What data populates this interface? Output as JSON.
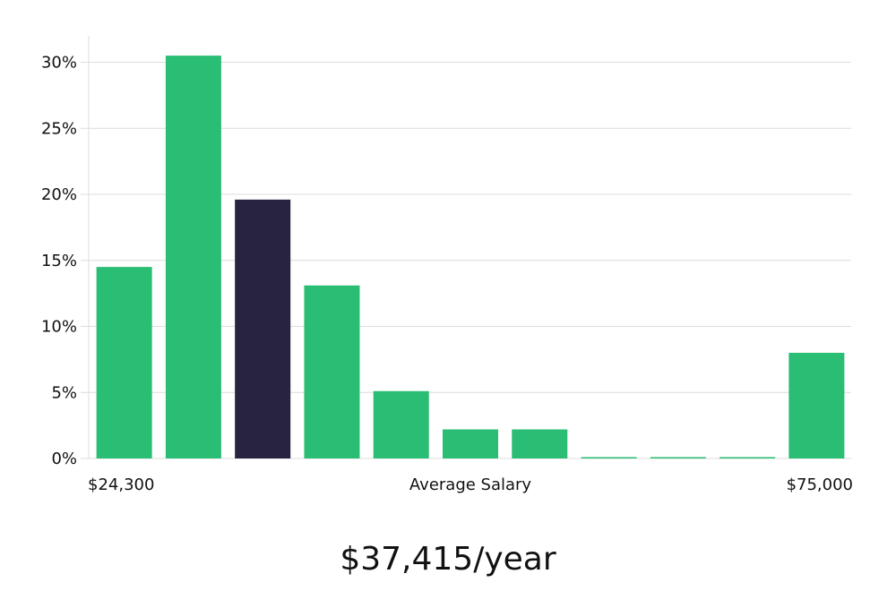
{
  "summary": {
    "salary_text": "$37,415/year"
  },
  "colors": {
    "bar": "#2abd74",
    "highlight": "#28233f",
    "grid": "#dcdcdc",
    "text": "#111111"
  },
  "chart_data": {
    "type": "bar",
    "title": "",
    "xlabel": "Average Salary",
    "ylabel": "",
    "x_range_labels": {
      "min": "$24,300",
      "max": "$75,000"
    },
    "ylim": [
      0,
      32
    ],
    "y_ticks": [
      0,
      5,
      10,
      15,
      20,
      25,
      30
    ],
    "y_tick_labels": [
      "0%",
      "5%",
      "10%",
      "15%",
      "20%",
      "25%",
      "30%"
    ],
    "grid": true,
    "legend": "none",
    "values": [
      14.5,
      30.5,
      19.6,
      13.1,
      5.1,
      2.2,
      2.2,
      0.1,
      0.1,
      0.1,
      8.0
    ],
    "highlight_index": 2
  }
}
